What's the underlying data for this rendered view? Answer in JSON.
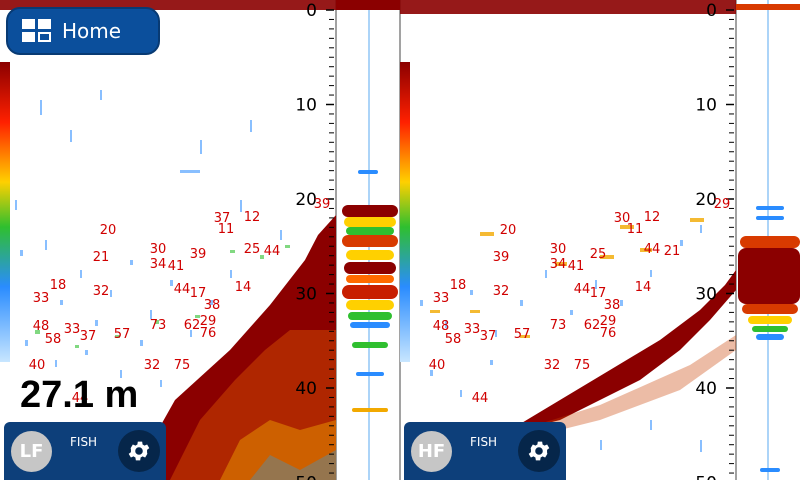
{
  "home": {
    "label": "Home",
    "icon": "home-grid-icon"
  },
  "depth_readout": "27.1 m",
  "left_panel": {
    "freq_label": "LF",
    "mode_label": "FISH",
    "settings_icon": "gear-icon"
  },
  "right_panel": {
    "freq_label": "HF",
    "mode_label": "FISH",
    "settings_icon": "gear-icon"
  },
  "scale_labels": [
    "0",
    "10",
    "20",
    "30",
    "40",
    "50"
  ],
  "fish_depths_left": [
    "39",
    "37",
    "12",
    "11",
    "20",
    "30",
    "39",
    "25",
    "44",
    "21",
    "34",
    "41",
    "18",
    "32",
    "44",
    "17",
    "14",
    "33",
    "38",
    "29",
    "48",
    "33",
    "37",
    "57",
    "73",
    "62",
    "76",
    "58",
    "40",
    "32",
    "75",
    "44"
  ],
  "fish_depths_right": [
    "29",
    "30",
    "12",
    "11",
    "20",
    "30",
    "25",
    "44",
    "21",
    "39",
    "34",
    "41",
    "18",
    "32",
    "44",
    "17",
    "14",
    "33",
    "38",
    "29",
    "48",
    "33",
    "37",
    "57",
    "73",
    "62",
    "76",
    "58",
    "40",
    "32",
    "75",
    "44"
  ]
}
